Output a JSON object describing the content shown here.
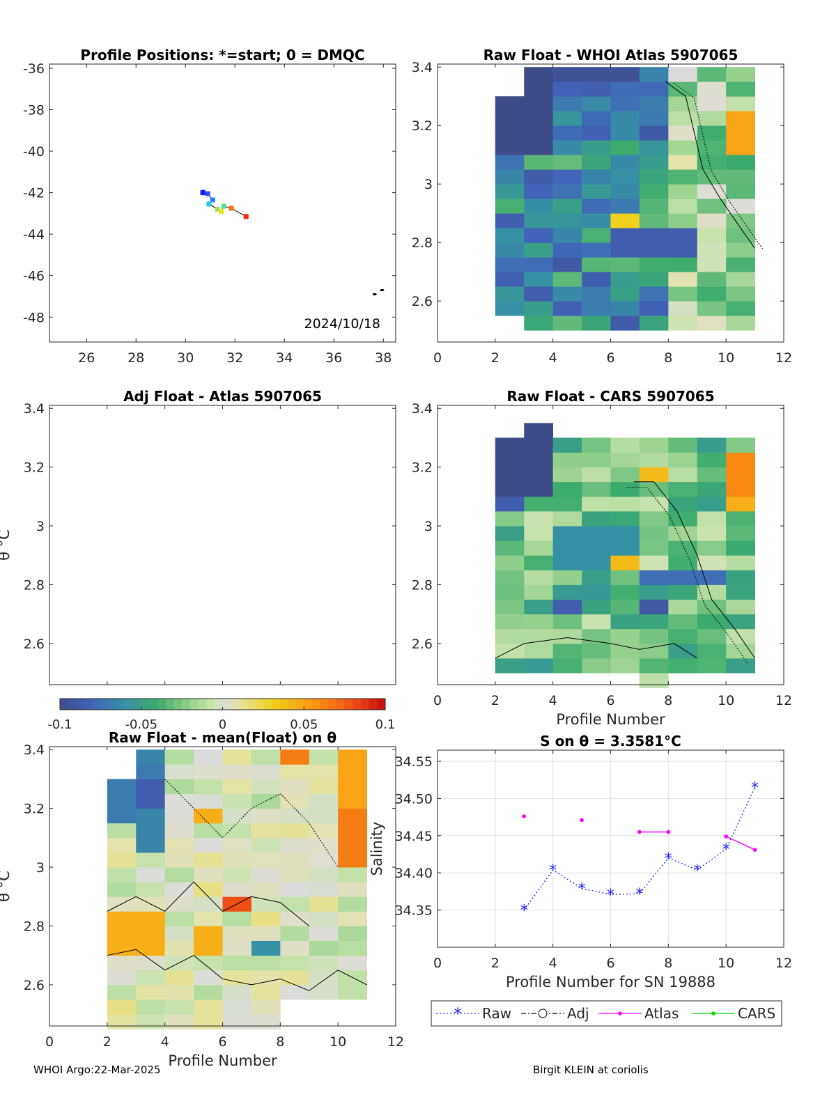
{
  "figure": {
    "footer_left": "WHOI Argo:22-Mar-2025",
    "footer_right": "Birgit KLEIN at coriolis"
  },
  "chart_data": [
    {
      "id": "positions",
      "type": "scatter",
      "title": "Profile Positions: *=start; 0 = DMQC",
      "xlim": [
        24.5,
        38.5
      ],
      "ylim": [
        -49.2,
        -35.8
      ],
      "xticks": [
        26,
        28,
        30,
        32,
        34,
        36,
        38
      ],
      "yticks": [
        -36,
        -38,
        -40,
        -42,
        -44,
        -46,
        -48
      ],
      "date_label": "2024/10/18",
      "track": [
        {
          "x": 30.7,
          "y": -42.0,
          "color": "#1a1aff"
        },
        {
          "x": 30.9,
          "y": -42.05,
          "color": "#2d4cff"
        },
        {
          "x": 31.1,
          "y": -42.35,
          "color": "#1f7fff"
        },
        {
          "x": 30.95,
          "y": -42.55,
          "color": "#1fc5e8"
        },
        {
          "x": 31.3,
          "y": -42.8,
          "color": "#a0e060"
        },
        {
          "x": 31.45,
          "y": -42.9,
          "color": "#f0e020"
        },
        {
          "x": 31.55,
          "y": -42.65,
          "color": "#50e0a0"
        },
        {
          "x": 31.85,
          "y": -42.75,
          "color": "#ff7010"
        },
        {
          "x": 32.45,
          "y": -43.15,
          "color": "#ff2010"
        }
      ],
      "land": [
        {
          "x": 37.65,
          "y": -46.9
        },
        {
          "x": 37.95,
          "y": -46.7
        }
      ]
    },
    {
      "id": "raw-whoi",
      "type": "heatmap",
      "title": "Raw Float - WHOI Atlas  5907065",
      "xlim": [
        0,
        12
      ],
      "ylim": [
        2.46,
        3.41
      ],
      "xticks": [
        0,
        2,
        4,
        6,
        8,
        10,
        12
      ],
      "yticks": [
        2.6,
        2.8,
        3.0,
        3.2,
        3.4
      ],
      "clim": [
        -0.1,
        0.1
      ]
    },
    {
      "id": "adj-atlas",
      "type": "heatmap",
      "title": "Adj Float - Atlas  5907065",
      "ylabel": "θ °C",
      "xlim": [
        0,
        12
      ],
      "ylim": [
        2.46,
        3.41
      ],
      "yticks": [
        2.6,
        2.8,
        3.0,
        3.2,
        3.4
      ],
      "colorbar": {
        "clim": [
          -0.1,
          0.1
        ],
        "ticks": [
          -0.1,
          -0.05,
          0,
          0.05,
          0.1
        ],
        "tick_labels": [
          "-0.1",
          "-0.05",
          "0",
          "0.05",
          "0.1"
        ]
      }
    },
    {
      "id": "raw-cars",
      "type": "heatmap",
      "title": "Raw Float - CARS  5907065",
      "xlabel": "Profile Number",
      "xlim": [
        0,
        12
      ],
      "ylim": [
        2.46,
        3.41
      ],
      "xticks": [
        0,
        2,
        4,
        6,
        8,
        10,
        12
      ],
      "yticks": [
        2.6,
        2.8,
        3.0,
        3.2,
        3.4
      ],
      "clim": [
        -0.1,
        0.1
      ]
    },
    {
      "id": "raw-mean",
      "type": "heatmap",
      "title": "Raw Float - mean(Float) on θ",
      "xlabel": "Profile Number",
      "ylabel": "θ °C",
      "xlim": [
        0,
        12
      ],
      "ylim": [
        2.46,
        3.41
      ],
      "xticks": [
        0,
        2,
        4,
        6,
        8,
        10,
        12
      ],
      "yticks": [
        2.6,
        2.8,
        3.0,
        3.2,
        3.4
      ],
      "clim": [
        -0.1,
        0.1
      ]
    },
    {
      "id": "salinity",
      "type": "line",
      "title": "S on θ = 3.3581°C",
      "xlabel": "Profile Number for SN 19888",
      "ylabel": "Salinity",
      "xlim": [
        0,
        12
      ],
      "ylim": [
        34.3,
        34.565
      ],
      "xticks": [
        0,
        2,
        4,
        6,
        8,
        10,
        12
      ],
      "yticks": [
        34.35,
        34.4,
        34.45,
        34.5,
        34.55
      ],
      "grid": true,
      "legend_position": "bottom",
      "series": [
        {
          "name": "Raw",
          "color": "#2020ff",
          "marker": "asterisk",
          "style": "dotted",
          "x": [
            3,
            4,
            5,
            6,
            7,
            8,
            9,
            10,
            11
          ],
          "y": [
            34.35,
            34.404,
            34.379,
            34.371,
            34.372,
            34.42,
            34.404,
            34.432,
            34.515
          ]
        },
        {
          "name": "Adj",
          "color": "#000000",
          "marker": "circle",
          "style": "dashdot",
          "x": [],
          "y": []
        },
        {
          "name": "Atlas",
          "color": "#ff00ff",
          "marker": "dot",
          "style": "solid",
          "segments": [
            {
              "x": [
                3
              ],
              "y": [
                34.476
              ]
            },
            {
              "x": [
                5
              ],
              "y": [
                34.471
              ]
            },
            {
              "x": [
                7,
                8
              ],
              "y": [
                34.455,
                34.455
              ]
            },
            {
              "x": [
                10,
                11
              ],
              "y": [
                34.449,
                34.431
              ]
            }
          ]
        },
        {
          "name": "CARS",
          "color": "#00dd00",
          "marker": "dot",
          "style": "solid",
          "x": [],
          "y": []
        }
      ]
    }
  ]
}
